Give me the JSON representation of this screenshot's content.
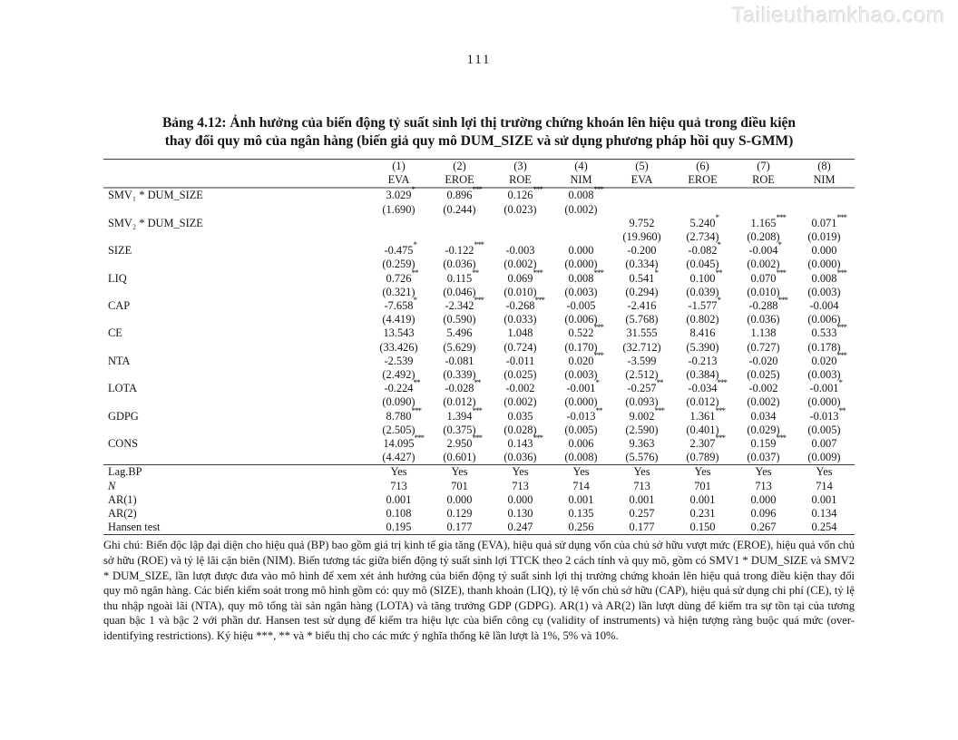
{
  "watermark": "Tailieuthamkhao.com",
  "page_number": "111",
  "table": {
    "title_line1": "Bảng 4.12: Ảnh hưởng của biến động tỷ suất sinh lợi thị trường chứng khoán lên hiệu quả trong điều kiện",
    "title_line2": "thay đổi quy mô của ngân hàng (biến giả quy mô DUM_SIZE và sử dụng phương pháp hồi quy S-GMM)",
    "column_numbers": [
      "(1)",
      "(2)",
      "(3)",
      "(4)",
      "(5)",
      "(6)",
      "(7)",
      "(8)"
    ],
    "column_models": [
      "EVA",
      "EROE",
      "ROE",
      "NIM",
      "EVA",
      "EROE",
      "ROE",
      "NIM"
    ],
    "coef_rows": [
      {
        "label": "SMV₁ * DUM_SIZE",
        "coefs": [
          "3.029*",
          "0.896***",
          "0.126***",
          "0.008***",
          "",
          "",
          "",
          ""
        ],
        "ses": [
          "(1.690)",
          "(0.244)",
          "(0.023)",
          "(0.002)",
          "",
          "",
          "",
          ""
        ]
      },
      {
        "label": "SMV₂ * DUM_SIZE",
        "coefs": [
          "",
          "",
          "",
          "",
          "9.752",
          "5.240*",
          "1.165***",
          "0.071***"
        ],
        "ses": [
          "",
          "",
          "",
          "",
          "(19.960)",
          "(2.734)",
          "(0.208)",
          "(0.019)"
        ]
      },
      {
        "label": "SIZE",
        "coefs": [
          "-0.475*",
          "-0.122***",
          "-0.003",
          "0.000",
          "-0.200",
          "-0.082*",
          "-0.004*",
          "0.000"
        ],
        "ses": [
          "(0.259)",
          "(0.036)",
          "(0.002)",
          "(0.000)",
          "(0.334)",
          "(0.045)",
          "(0.002)",
          "(0.000)"
        ]
      },
      {
        "label": "LIQ",
        "coefs": [
          "0.726**",
          "0.115**",
          "0.069***",
          "0.008***",
          "0.541*",
          "0.100**",
          "0.070***",
          "0.008***"
        ],
        "ses": [
          "(0.321)",
          "(0.046)",
          "(0.010)",
          "(0.003)",
          "(0.294)",
          "(0.039)",
          "(0.010)",
          "(0.003)"
        ]
      },
      {
        "label": "CAP",
        "coefs": [
          "-7.658*",
          "-2.342***",
          "-0.268***",
          "-0.005",
          "-2.416",
          "-1.577*",
          "-0.288***",
          "-0.004"
        ],
        "ses": [
          "(4.419)",
          "(0.590)",
          "(0.033)",
          "(0.006)",
          "(5.768)",
          "(0.802)",
          "(0.036)",
          "(0.006)"
        ]
      },
      {
        "label": "CE",
        "coefs": [
          "13.543",
          "5.496",
          "1.048",
          "0.522***",
          "31.555",
          "8.416",
          "1.138",
          "0.533***"
        ],
        "ses": [
          "(33.426)",
          "(5.629)",
          "(0.724)",
          "(0.170)",
          "(32.712)",
          "(5.390)",
          "(0.727)",
          "(0.178)"
        ]
      },
      {
        "label": "NTA",
        "coefs": [
          "-2.539",
          "-0.081",
          "-0.011",
          "0.020***",
          "-3.599",
          "-0.213",
          "-0.020",
          "0.020***"
        ],
        "ses": [
          "(2.492)",
          "(0.339)",
          "(0.025)",
          "(0.003)",
          "(2.512)",
          "(0.384)",
          "(0.025)",
          "(0.003)"
        ]
      },
      {
        "label": "LOTA",
        "coefs": [
          "-0.224**",
          "-0.028**",
          "-0.002",
          "-0.001*",
          "-0.257**",
          "-0.034***",
          "-0.002",
          "-0.001*"
        ],
        "ses": [
          "(0.090)",
          "(0.012)",
          "(0.002)",
          "(0.000)",
          "(0.093)",
          "(0.012)",
          "(0.002)",
          "(0.000)"
        ]
      },
      {
        "label": "GDPG",
        "coefs": [
          "8.780***",
          "1.394***",
          "0.035",
          "-0.013**",
          "9.002***",
          "1.361***",
          "0.034",
          "-0.013**"
        ],
        "ses": [
          "(2.505)",
          "(0.375)",
          "(0.028)",
          "(0.005)",
          "(2.590)",
          "(0.401)",
          "(0.029)",
          "(0.005)"
        ]
      },
      {
        "label": "CONS",
        "coefs": [
          "14.095***",
          "2.950***",
          "0.143***",
          "0.006",
          "9.363",
          "2.307***",
          "0.159***",
          "0.007"
        ],
        "ses": [
          "(4.427)",
          "(0.601)",
          "(0.036)",
          "(0.008)",
          "(5.576)",
          "(0.789)",
          "(0.037)",
          "(0.009)"
        ]
      }
    ],
    "stat_rows": [
      {
        "label": "Lag.BP",
        "italic": false,
        "values": [
          "Yes",
          "Yes",
          "Yes",
          "Yes",
          "Yes",
          "Yes",
          "Yes",
          "Yes"
        ]
      },
      {
        "label": "N",
        "italic": true,
        "values": [
          "713",
          "701",
          "713",
          "714",
          "713",
          "701",
          "713",
          "714"
        ]
      },
      {
        "label": "AR(1)",
        "italic": false,
        "values": [
          "0.001",
          "0.000",
          "0.000",
          "0.001",
          "0.001",
          "0.001",
          "0.000",
          "0.001"
        ]
      },
      {
        "label": "AR(2)",
        "italic": false,
        "values": [
          "0.108",
          "0.129",
          "0.130",
          "0.135",
          "0.257",
          "0.231",
          "0.096",
          "0.134"
        ]
      },
      {
        "label": "Hansen test",
        "italic": false,
        "values": [
          "0.195",
          "0.177",
          "0.247",
          "0.256",
          "0.177",
          "0.150",
          "0.267",
          "0.254"
        ]
      }
    ],
    "notes": "Ghi chú: Biến độc lập đại diện cho hiệu quả (BP) bao gồm giá trị kinh tế gia tăng (EVA), hiệu quả sử dụng vốn của chủ sở hữu vượt mức (EROE), hiệu quả vốn chủ sở hữu (ROE) và tỷ lệ lãi cận biên (NIM). Biến tương tác giữa biến động tỷ suất sinh lợi TTCK theo 2 cách tính và quy mô, gồm có SMV1 * DUM_SIZE và SMV2 * DUM_SIZE, lần lượt được đưa vào mô hình để xem xét ảnh hưởng của biến động tỷ suất sinh lợi thị trường chứng khoán lên hiệu quả trong điều kiện thay đổi quy mô ngân hàng. Các biến kiểm soát trong mô hình gồm có: quy mô (SIZE), thanh khoản (LIQ), tỷ lệ vốn chủ sở hữu (CAP), hiệu quả sử dụng chi phí (CE), tỷ lệ thu nhập ngoài lãi (NTA), quy mô tổng tài sản ngân hàng (LOTA) và tăng trưởng GDP (GDPG). AR(1) và AR(2) lần lượt dùng để kiểm tra sự tồn tại của tương quan bậc 1 và bậc 2 với phần dư. Hansen test sử dụng để kiểm tra hiệu lực của biến công cụ (validity of instruments) và hiện tượng ràng buộc quá mức (over-identifying restrictions). Ký hiệu ***, ** và * biểu thị cho các mức ý nghĩa thống kê lần lượt là 1%, 5% và 10%."
  }
}
